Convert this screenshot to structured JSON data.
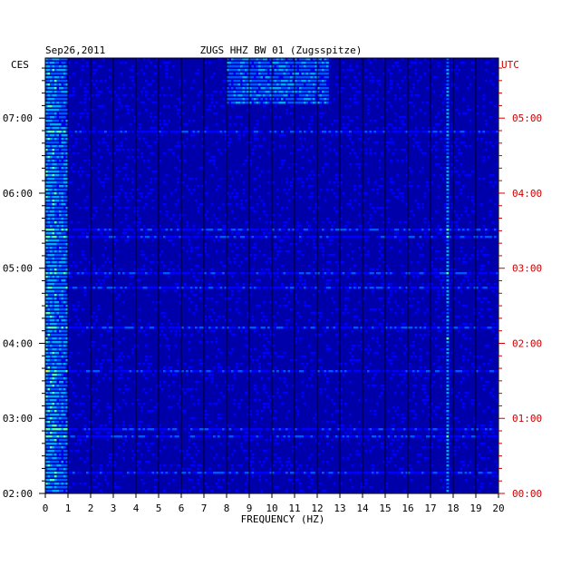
{
  "header": {
    "date": "Sep26,2011",
    "station": "ZUGS HHZ BW 01 (Zugsspitze)"
  },
  "chart_data": {
    "type": "heatmap",
    "title": "ZUGS HHZ BW 01 (Zugsspitze)",
    "date": "Sep26,2011",
    "xlabel": "FREQUENCY (HZ)",
    "xlim": [
      0,
      20
    ],
    "x_ticks": [
      "0",
      "1",
      "2",
      "3",
      "4",
      "5",
      "6",
      "7",
      "8",
      "9",
      "10",
      "11",
      "12",
      "13",
      "14",
      "15",
      "16",
      "17",
      "18",
      "19",
      "20"
    ],
    "left_axis_label": "CES",
    "right_axis_label": "UTC",
    "left_time_ticks": [
      "07:00",
      "06:00",
      "05:00",
      "04:00",
      "03:00",
      "02:00"
    ],
    "right_time_ticks": [
      "05:00",
      "04:00",
      "03:00",
      "02:00",
      "01:00",
      "00:00"
    ],
    "time_range_local": [
      "02:00",
      "07:48"
    ],
    "colormap": [
      "#0000aa",
      "#0000ff",
      "#0055ff",
      "#00aaff",
      "#55ffaa",
      "#ffff00",
      "#ff5500",
      "#ff0000"
    ],
    "right_axis_color": "#cc0000",
    "bands": [
      {
        "freq": [
          0,
          1
        ],
        "level": "high"
      },
      {
        "freq": [
          17.7,
          17.8
        ],
        "level": "high",
        "note": "narrow line"
      },
      {
        "freq": [
          8,
          12.5
        ],
        "time": [
          "07:10",
          "07:48"
        ],
        "level": "high"
      }
    ]
  }
}
